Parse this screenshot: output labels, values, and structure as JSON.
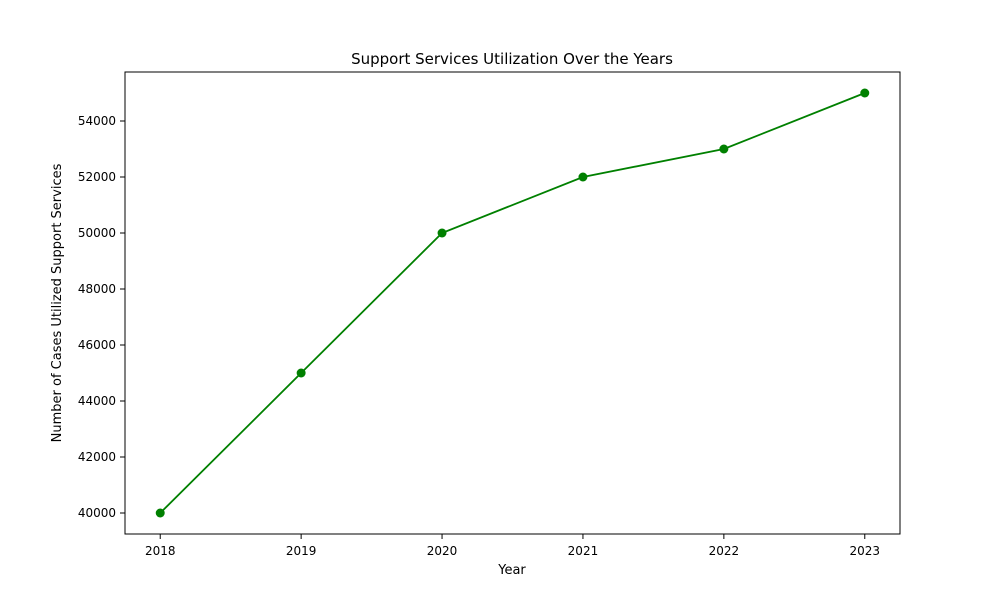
{
  "chart_data": {
    "type": "line",
    "title": "Support Services Utilization Over the Years",
    "xlabel": "Year",
    "ylabel": "Number of Cases Utilized Support Services",
    "x": [
      2018,
      2019,
      2020,
      2021,
      2022,
      2023
    ],
    "x_tick_labels": [
      "2018",
      "2019",
      "2020",
      "2021",
      "2022",
      "2023"
    ],
    "xlim": [
      2017.75,
      2023.25
    ],
    "y_ticks": [
      40000,
      42000,
      44000,
      46000,
      48000,
      50000,
      52000,
      54000
    ],
    "y_tick_labels": [
      "40000",
      "42000",
      "44000",
      "46000",
      "48000",
      "50000",
      "52000",
      "54000"
    ],
    "ylim": [
      39250,
      55750
    ],
    "grid": false,
    "series": [
      {
        "name": "Support Services Utilization",
        "values": [
          40000,
          45000,
          50000,
          52000,
          53000,
          55000
        ],
        "color": "#008000",
        "marker": "circle"
      }
    ]
  }
}
